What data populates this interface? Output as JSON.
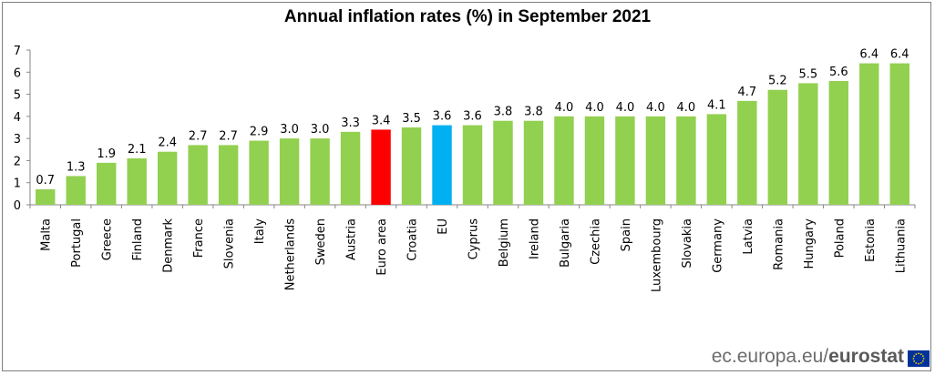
{
  "chart_data": {
    "type": "bar",
    "title": "Annual inflation rates (%) in September 2021",
    "xlabel": "",
    "ylabel": "",
    "ylim": [
      0,
      7
    ],
    "yticks": [
      "0",
      "1",
      "2",
      "3",
      "4",
      "5",
      "6",
      "7"
    ],
    "categories": [
      "Malta",
      "Portugal",
      "Greece",
      "Finland",
      "Denmark",
      "France",
      "Slovenia",
      "Italy",
      "Netherlands",
      "Sweden",
      "Austria",
      "Euro area",
      "Croatia",
      "EU",
      "Cyprus",
      "Belgium",
      "Ireland",
      "Bulgaria",
      "Czechia",
      "Spain",
      "Luxembourg",
      "Slovakia",
      "Germany",
      "Latvia",
      "Romania",
      "Hungary",
      "Poland",
      "Estonia",
      "Lithuania"
    ],
    "values": [
      0.7,
      1.3,
      1.9,
      2.1,
      2.4,
      2.7,
      2.7,
      2.9,
      3.0,
      3.0,
      3.3,
      3.4,
      3.5,
      3.6,
      3.6,
      3.8,
      3.8,
      4.0,
      4.0,
      4.0,
      4.0,
      4.0,
      4.1,
      4.7,
      5.2,
      5.5,
      5.6,
      6.4,
      6.4
    ],
    "value_labels": [
      "0.7",
      "1.3",
      "1.9",
      "2.1",
      "2.4",
      "2.7",
      "2.7",
      "2.9",
      "3.0",
      "3.0",
      "3.3",
      "3.4",
      "3.5",
      "3.6",
      "3.6",
      "3.8",
      "3.8",
      "4.0",
      "4.0",
      "4.0",
      "4.0",
      "4.0",
      "4.1",
      "4.7",
      "5.2",
      "5.5",
      "5.6",
      "6.4",
      "6.4"
    ],
    "colors": {
      "default": "#92d050",
      "highlights": {
        "Euro area": "#ff0000",
        "EU": "#00b0f0"
      }
    },
    "grid": false
  },
  "source": {
    "prefix": "ec.europa.eu/",
    "brand": "eurostat"
  },
  "flag": {
    "background": "#003399",
    "star_color": "#ffcc00"
  }
}
